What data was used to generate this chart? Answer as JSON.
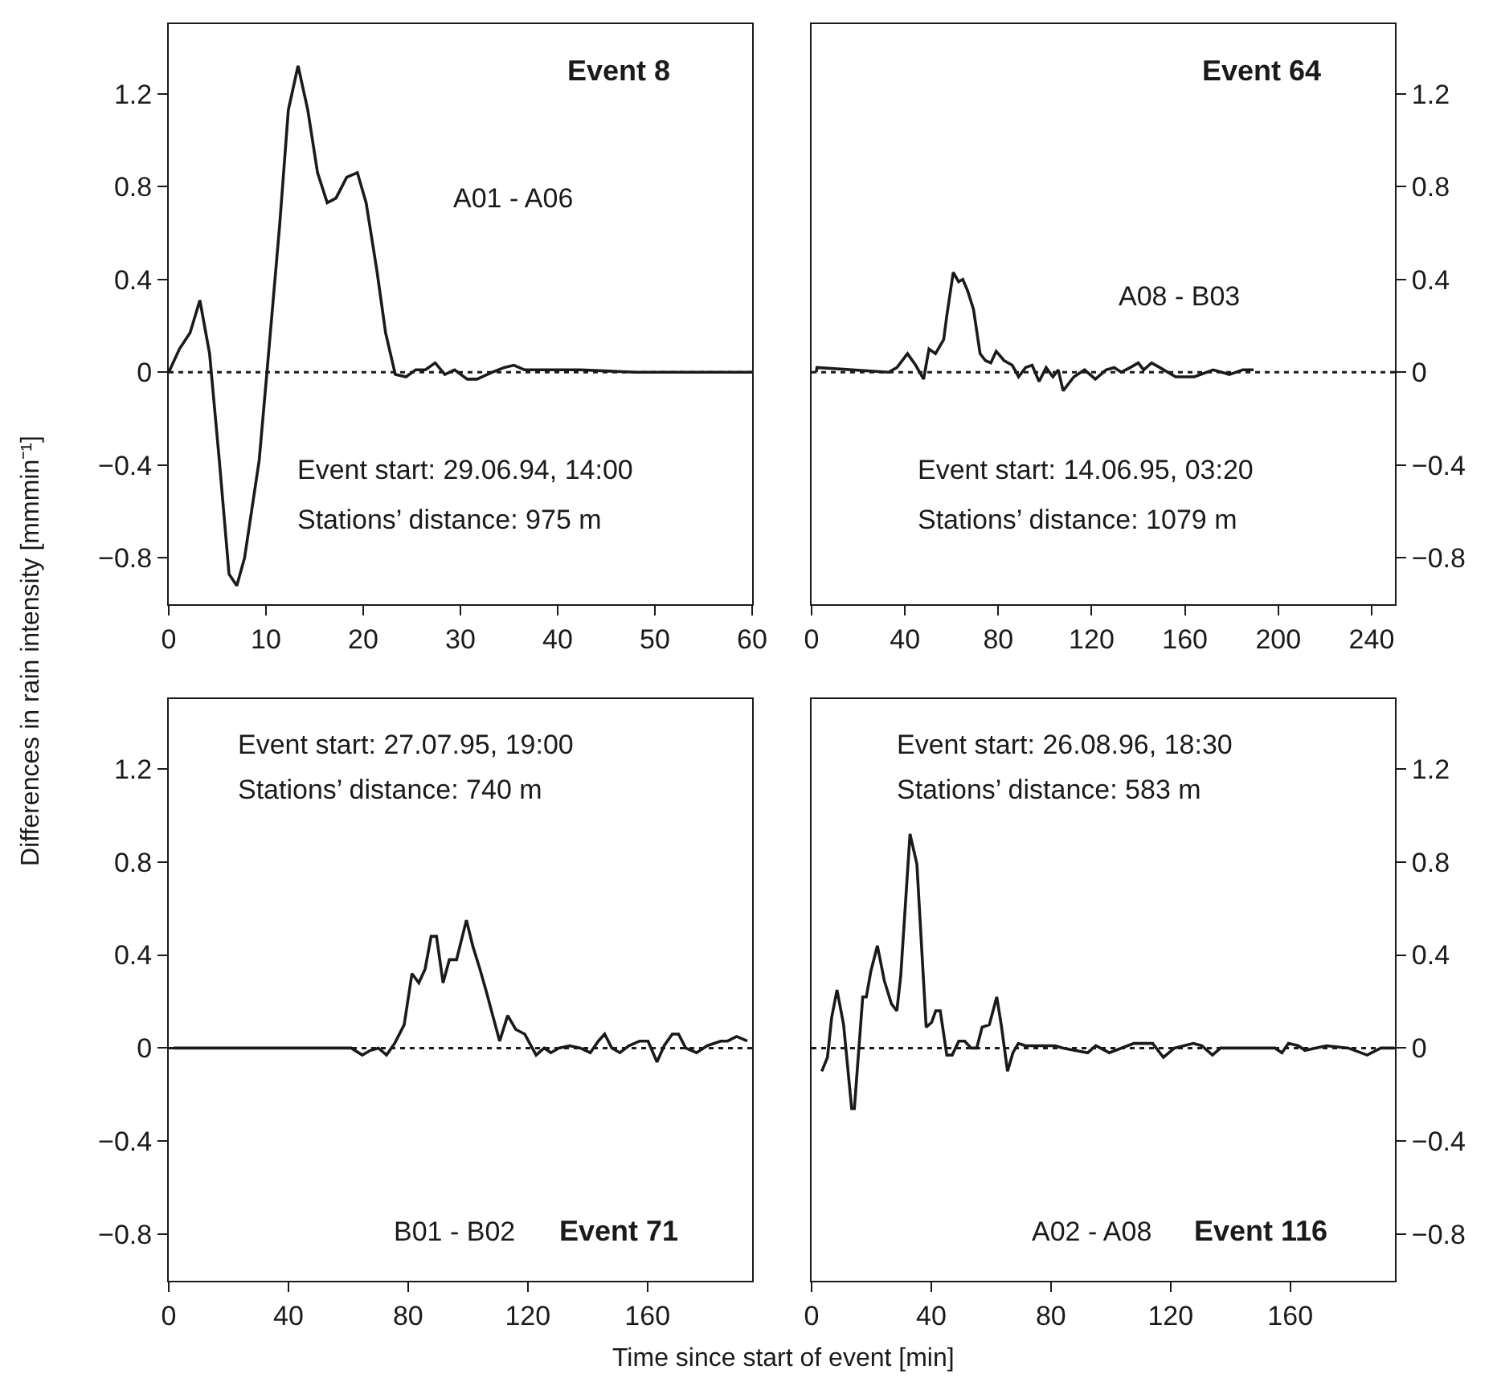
{
  "chart_data": [
    {
      "type": "line",
      "title": "Event 8",
      "ylabel": "Differences in rain intensity [mmmin⁻¹]",
      "annotations": [
        "A01 - A06",
        "Event start: 29.06.94, 14:00",
        "Stations’ distance: 975 m"
      ],
      "series": [
        {
          "color": "#1a1a1a",
          "x": [
            0,
            1.1,
            2.2,
            3.2,
            4.2,
            5.2,
            6.2,
            7,
            7.8,
            9.3,
            10.1,
            11.4,
            12.3,
            13.3,
            14.3,
            15.3,
            16.3,
            17.2,
            18.3,
            19.4,
            20.3,
            21.4,
            22.3,
            23.3,
            24.4,
            25.4,
            26.4,
            27.4,
            28.4,
            29.4,
            30.7,
            31.7,
            33.3,
            34.5,
            35.5,
            36.6,
            40,
            42.3,
            48,
            60
          ],
          "values": [
            0,
            0.1,
            0.17,
            0.31,
            0.08,
            -0.38,
            -0.87,
            -0.92,
            -0.8,
            -0.38,
            0,
            0.63,
            1.13,
            1.32,
            1.13,
            0.86,
            0.73,
            0.75,
            0.84,
            0.86,
            0.73,
            0.44,
            0.17,
            -0.01,
            -0.02,
            0.01,
            0.01,
            0.04,
            -0.01,
            0.01,
            -0.03,
            -0.03,
            0,
            0.02,
            0.03,
            0.01,
            0.01,
            0.01,
            0,
            0
          ]
        }
      ],
      "xlim": [
        0,
        60
      ],
      "xticks": [
        0,
        10,
        20,
        30,
        40,
        50,
        60
      ],
      "ylim": [
        -1.0,
        1.5
      ],
      "yticks": [
        -0.8,
        -0.4,
        0,
        0.4,
        0.8,
        1.2
      ],
      "ref_lines": [
        {
          "axis": "y",
          "value": 0,
          "line_style": "dotted",
          "color": "#1a1a1a"
        }
      ]
    },
    {
      "type": "line",
      "title": "Event 64",
      "annotations": [
        "A08 - B03",
        "Event start: 14.06.95, 03:20",
        "Stations’ distance: 1079 m"
      ],
      "series": [
        {
          "color": "#1a1a1a",
          "x": [
            2,
            2.3,
            33,
            36.6,
            41.1,
            44.6,
            48,
            50.3,
            53.1,
            56.6,
            57.9,
            60.7,
            63,
            64.8,
            66.9,
            69.4,
            72.2,
            74.5,
            76.8,
            79.1,
            82.5,
            86,
            88.7,
            91.7,
            94.5,
            97.5,
            100.5,
            103.4,
            105.7,
            107.8,
            112.4,
            117,
            121.6,
            126.2,
            129.7,
            132.7,
            136.6,
            140,
            142.3,
            145.7,
            149.2,
            156,
            164,
            172.1,
            179,
            184.8,
            189.4
          ],
          "values": [
            0,
            0.02,
            0,
            0.02,
            0.08,
            0.03,
            -0.03,
            0.1,
            0.08,
            0.14,
            0.24,
            0.43,
            0.39,
            0.4,
            0.35,
            0.27,
            0.08,
            0.05,
            0.04,
            0.09,
            0.05,
            0.03,
            -0.02,
            0.02,
            0.03,
            -0.04,
            0.02,
            -0.02,
            0.01,
            -0.08,
            -0.02,
            0.01,
            -0.03,
            0.01,
            0.02,
            0,
            0.02,
            0.04,
            0.01,
            0.04,
            0.02,
            -0.02,
            -0.02,
            0.01,
            -0.01,
            0.01,
            0.01
          ]
        }
      ],
      "xlim": [
        0,
        250
      ],
      "xticks": [
        0,
        40,
        80,
        120,
        160,
        200,
        240
      ],
      "ylim": [
        -1.0,
        1.5
      ],
      "yticks": [
        -0.8,
        -0.4,
        0,
        0.4,
        0.8,
        1.2
      ],
      "ref_lines": [
        {
          "axis": "y",
          "value": 0,
          "line_style": "dotted",
          "color": "#1a1a1a"
        }
      ]
    },
    {
      "type": "line",
      "title": "Event 71",
      "xlabel": "Time since start of event [min]",
      "annotations": [
        "Event start: 27.07.95, 19:00",
        "Stations’ distance: 740 m",
        "B01 - B02"
      ],
      "series": [
        {
          "color": "#1a1a1a",
          "x": [
            1.6,
            61,
            64.7,
            67.4,
            70.1,
            72.8,
            75.5,
            78.7,
            81.3,
            83.6,
            85.7,
            87.7,
            89.5,
            91.7,
            93.8,
            96.2,
            99.5,
            101.6,
            104,
            106,
            108.3,
            110.6,
            113.3,
            116,
            119,
            122.8,
            125.5,
            127.7,
            130.4,
            134,
            137.6,
            140.9,
            143.6,
            145.7,
            148.1,
            150.8,
            153.8,
            157.4,
            160.2,
            163.2,
            165.6,
            168.3,
            170.4,
            172.8,
            176.4,
            180,
            184.5,
            186.8,
            189.8,
            193.4
          ],
          "values": [
            0,
            0,
            -0.03,
            -0.01,
            0,
            -0.03,
            0.02,
            0.1,
            0.32,
            0.28,
            0.34,
            0.48,
            0.48,
            0.28,
            0.38,
            0.38,
            0.55,
            0.44,
            0.34,
            0.25,
            0.14,
            0.03,
            0.14,
            0.08,
            0.06,
            -0.03,
            0,
            -0.02,
            0,
            0.01,
            0,
            -0.02,
            0.03,
            0.06,
            0,
            -0.02,
            0.01,
            0.03,
            0.03,
            -0.06,
            0.01,
            0.06,
            0.06,
            0,
            -0.02,
            0.01,
            0.03,
            0.03,
            0.05,
            0.03
          ]
        }
      ],
      "xlim": [
        0,
        195
      ],
      "xticks": [
        0,
        40,
        80,
        120,
        160
      ],
      "ylim": [
        -1.0,
        1.5
      ],
      "yticks": [
        -0.8,
        -0.4,
        0,
        0.4,
        0.8,
        1.2
      ],
      "ref_lines": [
        {
          "axis": "y",
          "value": 0,
          "line_style": "dotted",
          "color": "#1a1a1a"
        }
      ]
    },
    {
      "type": "line",
      "title": "Event 116",
      "annotations": [
        "Event start: 26.08.96, 18:30",
        "Stations’ distance: 583 m",
        "A02 - A08"
      ],
      "series": [
        {
          "color": "#1a1a1a",
          "x": [
            3.4,
            5.3,
            6.7,
            8.5,
            10.7,
            13.4,
            14.3,
            17.1,
            18.3,
            19.8,
            22,
            24.3,
            26.7,
            28.5,
            29.8,
            32.9,
            35.2,
            38.3,
            40.1,
            41.5,
            43,
            45.2,
            47,
            49.2,
            51.2,
            53.3,
            55.2,
            57,
            59.4,
            61.9,
            63.4,
            65.5,
            67.3,
            69.1,
            71.5,
            81.4,
            84.1,
            92.3,
            95,
            99.5,
            107.7,
            114,
            117.6,
            121.3,
            127.6,
            130.4,
            134,
            136.7,
            154.9,
            157.2,
            159.4,
            162.7,
            164.9,
            172.1,
            179.4,
            185.7,
            190.3,
            194.8
          ],
          "values": [
            -0.1,
            -0.04,
            0.13,
            0.25,
            0.1,
            -0.26,
            -0.26,
            0.22,
            0.22,
            0.33,
            0.44,
            0.29,
            0.19,
            0.16,
            0.31,
            0.92,
            0.79,
            0.09,
            0.11,
            0.16,
            0.16,
            -0.03,
            -0.03,
            0.03,
            0.03,
            0,
            0,
            0.09,
            0.1,
            0.22,
            0.1,
            -0.1,
            -0.02,
            0.02,
            0.01,
            0.01,
            0,
            -0.02,
            0.01,
            -0.02,
            0.02,
            0.02,
            -0.04,
            0,
            0.02,
            0.01,
            -0.03,
            0,
            0,
            -0.02,
            0.02,
            0.01,
            -0.01,
            0.01,
            0,
            -0.03,
            0,
            0
          ]
        }
      ],
      "xlim": [
        0,
        195
      ],
      "xticks": [
        0,
        40,
        80,
        120,
        160
      ],
      "ylim": [
        -1.0,
        1.5
      ],
      "yticks": [
        -0.8,
        -0.4,
        0,
        0.4,
        0.8,
        1.2
      ],
      "ref_lines": [
        {
          "axis": "y",
          "value": 0,
          "line_style": "dotted",
          "color": "#1a1a1a"
        }
      ]
    }
  ]
}
